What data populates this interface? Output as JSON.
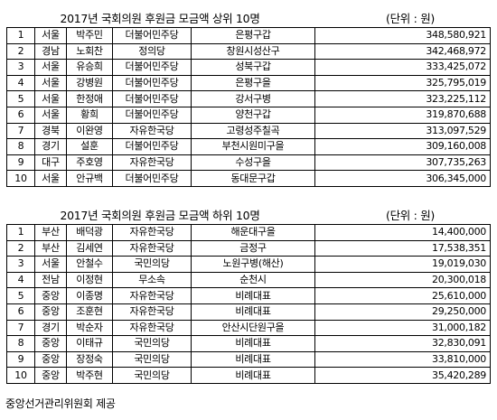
{
  "top": {
    "title": "2017년 국회의원 후원금 모금액 상위 10명",
    "unit": "(단위 : 원)",
    "rows": [
      {
        "rank": "1",
        "region": "서울",
        "name": "박주민",
        "party": "더불어민주당",
        "district": "은평구갑",
        "amount": "348,580,921"
      },
      {
        "rank": "2",
        "region": "경남",
        "name": "노회찬",
        "party": "정의당",
        "district": "창원시성산구",
        "amount": "342,468,972"
      },
      {
        "rank": "3",
        "region": "서울",
        "name": "유승희",
        "party": "더불어민주당",
        "district": "성북구갑",
        "amount": "333,425,072"
      },
      {
        "rank": "4",
        "region": "서울",
        "name": "강병원",
        "party": "더불어민주당",
        "district": "은평구을",
        "amount": "325,795,019"
      },
      {
        "rank": "5",
        "region": "서울",
        "name": "한정애",
        "party": "더불어민주당",
        "district": "강서구병",
        "amount": "323,225,112"
      },
      {
        "rank": "6",
        "region": "서울",
        "name": "황희",
        "party": "더불어민주당",
        "district": "양천구갑",
        "amount": "319,870,688"
      },
      {
        "rank": "7",
        "region": "경북",
        "name": "이완영",
        "party": "자유한국당",
        "district": "고령성주칠곡",
        "amount": "313,097,529"
      },
      {
        "rank": "8",
        "region": "경기",
        "name": "설훈",
        "party": "더불어민주당",
        "district": "부천시원미구을",
        "amount": "309,160,008"
      },
      {
        "rank": "9",
        "region": "대구",
        "name": "주호영",
        "party": "자유한국당",
        "district": "수성구을",
        "amount": "307,735,263"
      },
      {
        "rank": "10",
        "region": "서울",
        "name": "안규백",
        "party": "더불어민주당",
        "district": "동대문구갑",
        "amount": "306,345,000"
      }
    ]
  },
  "bottom": {
    "title": "2017년 국회의원 후원금 모금액 하위 10명",
    "unit": "(단위 : 원)",
    "rows": [
      {
        "rank": "1",
        "region": "부산",
        "name": "배덕광",
        "party": "자유한국당",
        "district": "해운대구을",
        "amount": "14,400,000"
      },
      {
        "rank": "2",
        "region": "부산",
        "name": "김세연",
        "party": "자유한국당",
        "district": "금정구",
        "amount": "17,538,351"
      },
      {
        "rank": "3",
        "region": "서울",
        "name": "안철수",
        "party": "국민의당",
        "district": "노원구병(해산)",
        "amount": "19,019,030"
      },
      {
        "rank": "4",
        "region": "전남",
        "name": "이정현",
        "party": "무소속",
        "district": "순천시",
        "amount": "20,300,018"
      },
      {
        "rank": "5",
        "region": "중앙",
        "name": "이종명",
        "party": "자유한국당",
        "district": "비례대표",
        "amount": "25,610,000"
      },
      {
        "rank": "6",
        "region": "중앙",
        "name": "조훈현",
        "party": "자유한국당",
        "district": "비례대표",
        "amount": "29,250,000"
      },
      {
        "rank": "7",
        "region": "경기",
        "name": "박순자",
        "party": "자유한국당",
        "district": "안산시단원구을",
        "amount": "31,000,182"
      },
      {
        "rank": "8",
        "region": "중앙",
        "name": "이태규",
        "party": "국민의당",
        "district": "비례대표",
        "amount": "32,830,091"
      },
      {
        "rank": "9",
        "region": "중앙",
        "name": "장정숙",
        "party": "국민의당",
        "district": "비례대표",
        "amount": "33,810,000"
      },
      {
        "rank": "10",
        "region": "중앙",
        "name": "박주현",
        "party": "국민의당",
        "district": "비례대표",
        "amount": "35,420,289"
      }
    ]
  },
  "footer": "중앙선거관리위원회 제공"
}
